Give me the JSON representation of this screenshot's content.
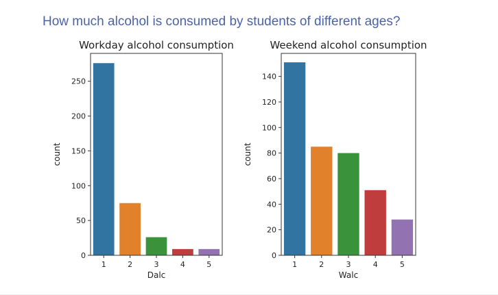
{
  "page": {
    "heading": "How much alcohol is consumed by students of different ages?"
  },
  "chart_data": [
    {
      "type": "bar",
      "title": "Workday alcohol consumption",
      "xlabel": "Dalc",
      "ylabel": "count",
      "categories": [
        "1",
        "2",
        "3",
        "4",
        "5"
      ],
      "values": [
        276,
        75,
        26,
        9,
        9
      ],
      "colors": [
        "#3274a1",
        "#e1812c",
        "#3a923a",
        "#c03d3e",
        "#9372b2"
      ],
      "ylim": [
        0,
        290
      ],
      "yticks": [
        0,
        50,
        100,
        150,
        200,
        250
      ],
      "grid": false
    },
    {
      "type": "bar",
      "title": "Weekend alcohol consumption",
      "xlabel": "Walc",
      "ylabel": "count",
      "categories": [
        "1",
        "2",
        "3",
        "4",
        "5"
      ],
      "values": [
        151,
        85,
        80,
        51,
        28
      ],
      "colors": [
        "#3274a1",
        "#e1812c",
        "#3a923a",
        "#c03d3e",
        "#9372b2"
      ],
      "ylim": [
        0,
        158
      ],
      "yticks": [
        0,
        20,
        40,
        60,
        80,
        100,
        120,
        140
      ],
      "grid": false
    }
  ]
}
